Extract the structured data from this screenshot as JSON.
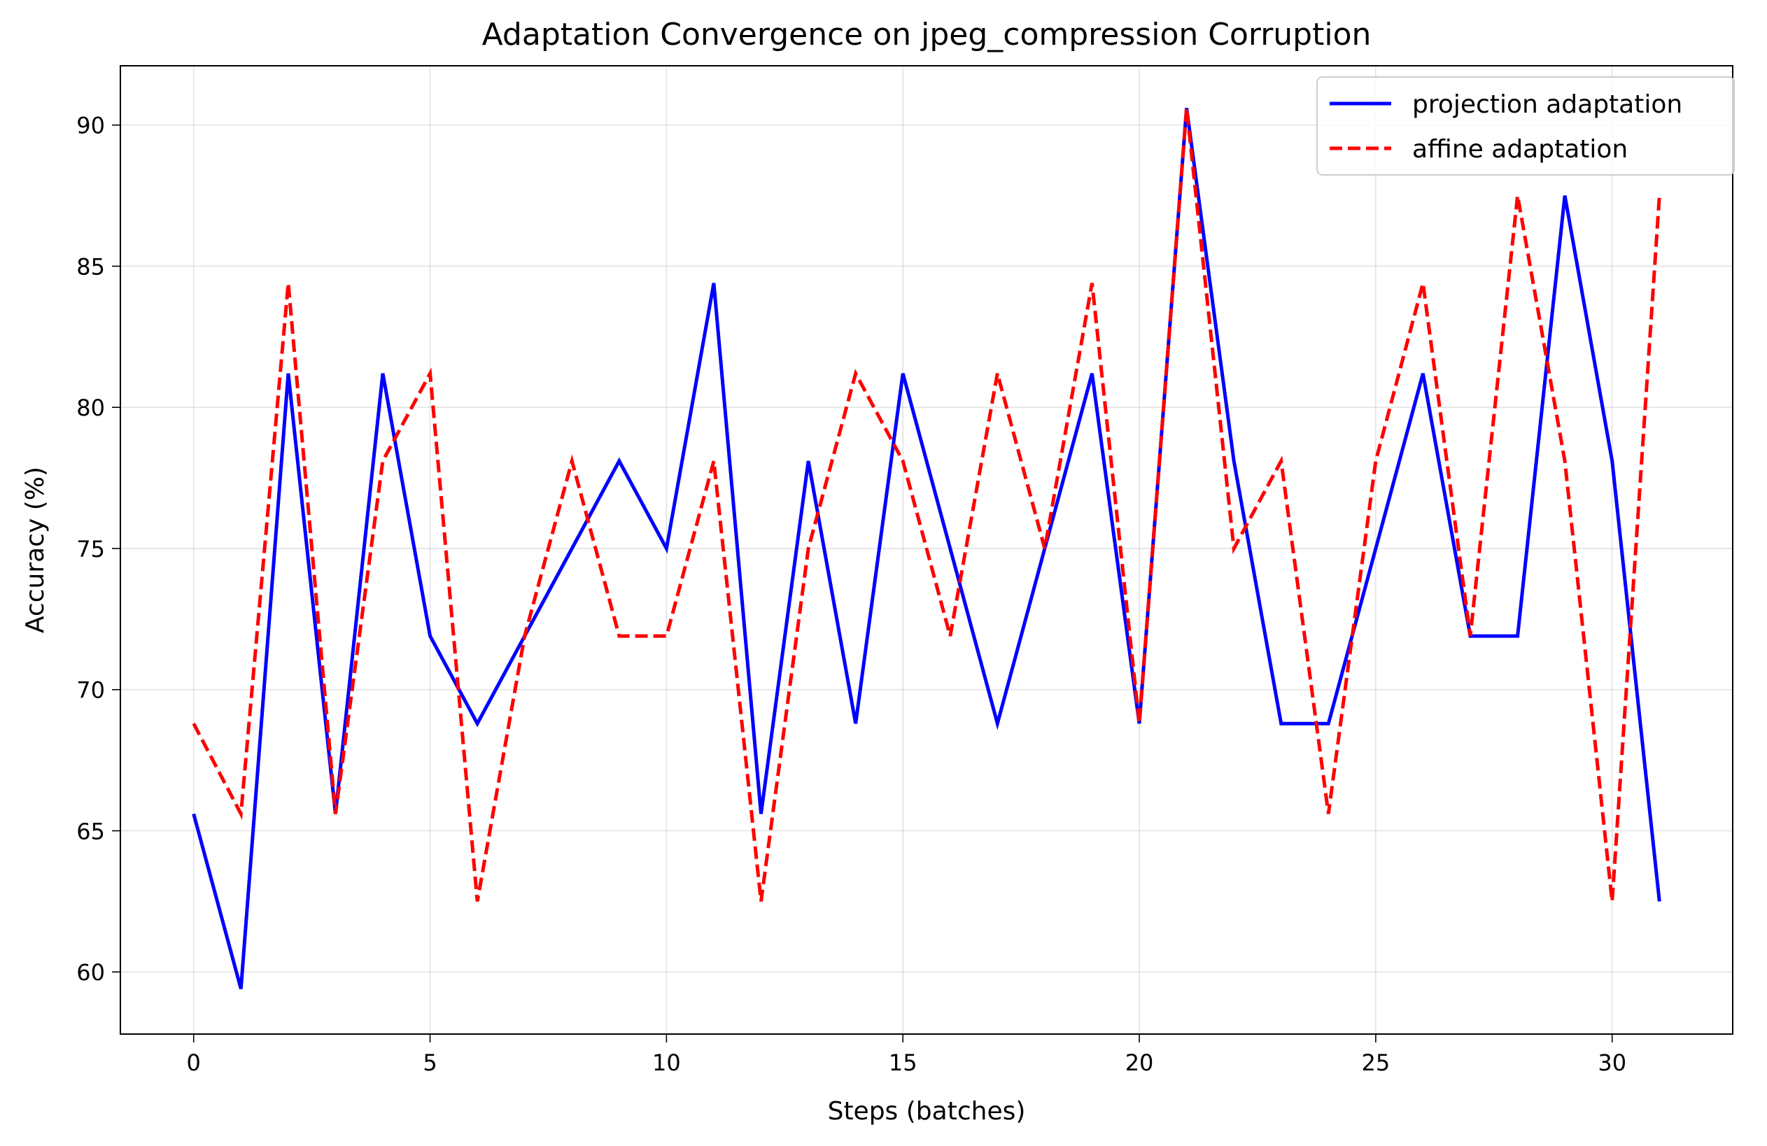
{
  "chart_data": {
    "type": "line",
    "title": "Adaptation Convergence on jpeg_compression Corruption",
    "xlabel": "Steps (batches)",
    "ylabel": "Accuracy (%)",
    "xlim": [
      -1.55,
      32.55
    ],
    "ylim": [
      57.8,
      92.1
    ],
    "xticks": [
      0,
      5,
      10,
      15,
      20,
      25,
      30
    ],
    "yticks": [
      60,
      65,
      70,
      75,
      80,
      85,
      90
    ],
    "grid": true,
    "legend_position": "top-right",
    "x": [
      0,
      1,
      2,
      3,
      4,
      5,
      6,
      7,
      8,
      9,
      10,
      11,
      12,
      13,
      14,
      15,
      16,
      17,
      18,
      19,
      20,
      21,
      22,
      23,
      24,
      25,
      26,
      27,
      28,
      29,
      30,
      31
    ],
    "series": [
      {
        "name": "projection adaptation",
        "color": "#0000ff",
        "style": "solid",
        "values": [
          65.6,
          59.4,
          81.2,
          65.6,
          81.2,
          71.9,
          68.8,
          71.9,
          75.0,
          78.1,
          75.0,
          84.4,
          65.6,
          78.1,
          68.8,
          81.2,
          75.0,
          68.8,
          75.0,
          81.2,
          68.8,
          90.6,
          78.1,
          68.8,
          68.8,
          75.0,
          81.2,
          71.9,
          71.9,
          87.5,
          78.1,
          62.5
        ]
      },
      {
        "name": "affine adaptation",
        "color": "#ff0000",
        "style": "dashed",
        "values": [
          68.8,
          65.6,
          84.4,
          65.6,
          78.1,
          81.2,
          62.5,
          71.9,
          78.1,
          71.9,
          71.9,
          78.1,
          62.5,
          75.0,
          81.2,
          78.1,
          71.9,
          81.2,
          75.0,
          84.4,
          68.8,
          90.6,
          75.0,
          78.1,
          65.6,
          78.1,
          84.4,
          71.9,
          87.5,
          78.1,
          62.5,
          87.5
        ]
      }
    ]
  }
}
